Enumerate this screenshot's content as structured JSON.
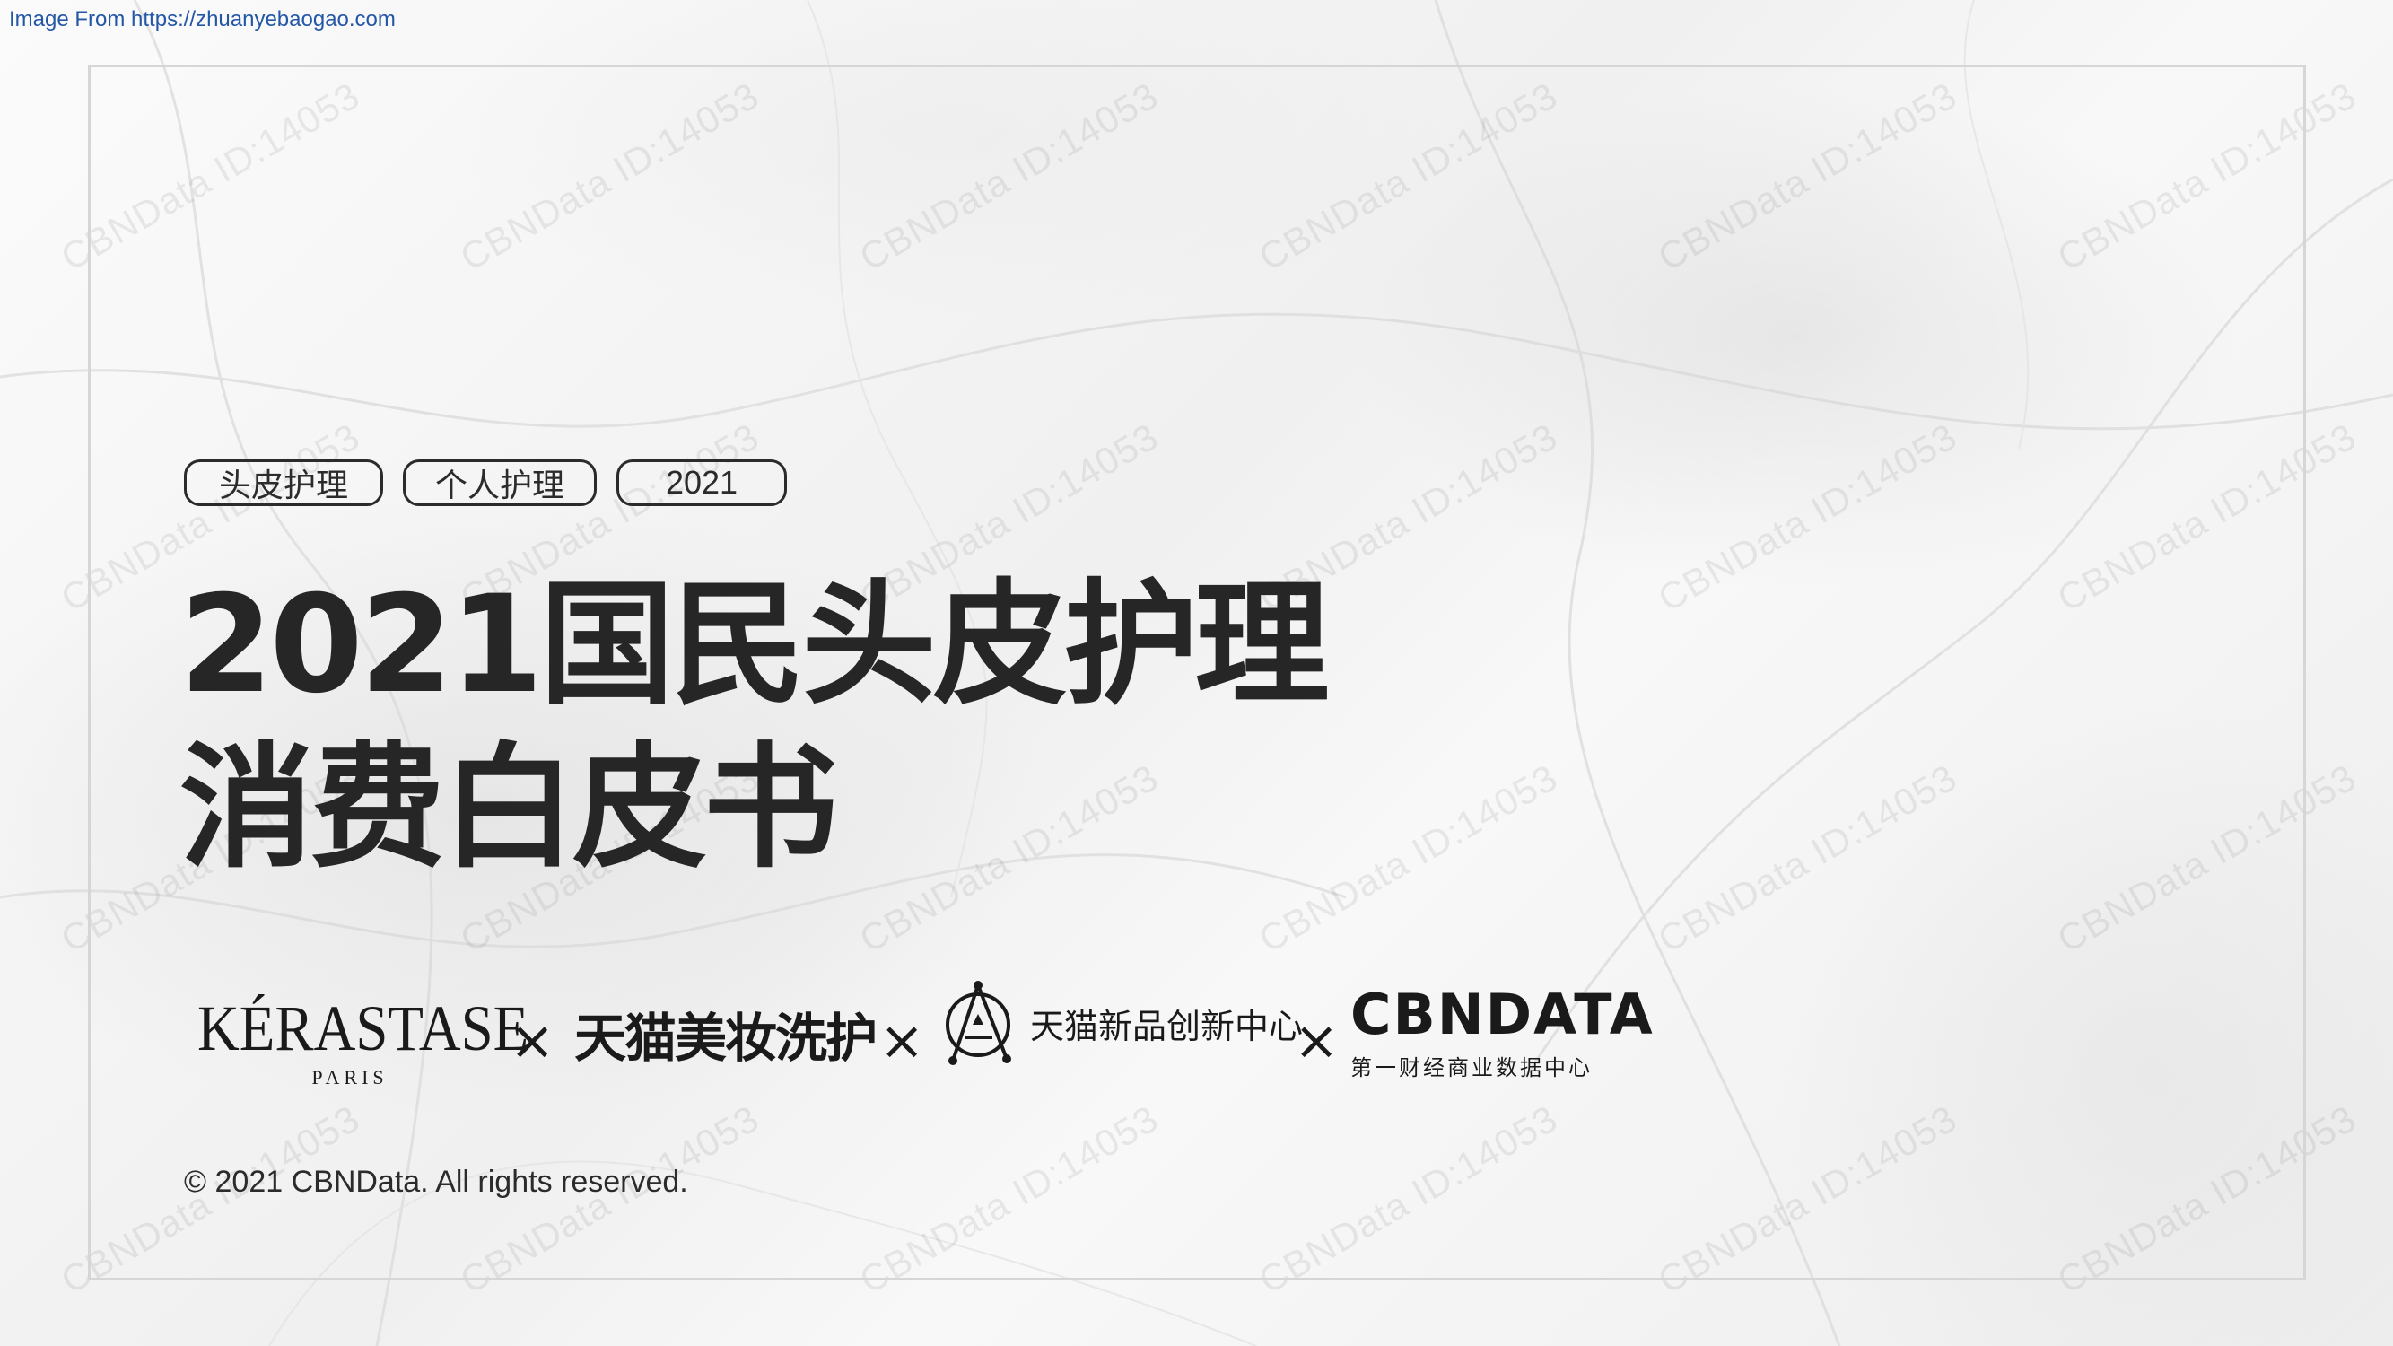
{
  "source_link": "Image From https://zhuanyebaogao.com",
  "watermark_text": "CBNData ID:14053",
  "tags": [
    "头皮护理",
    "个人护理",
    "2021"
  ],
  "title": {
    "line1": "2021国民头皮护理",
    "line2": "消费白皮书"
  },
  "logos": {
    "kerastase_name": "KÉRASTASE",
    "kerastase_sub": "PARIS",
    "separator": "×",
    "tmall_beauty": "天猫美妆洗护",
    "tmic": "天猫新品创新中心",
    "cbndata_name": "CBNDATA",
    "cbndata_sub": "第一财经商业数据中心"
  },
  "copyright": "© 2021 CBNData. All rights reserved.",
  "colors": {
    "text": "#2b2b2b",
    "link": "#2457a6",
    "frame": "#d6d6d6"
  }
}
